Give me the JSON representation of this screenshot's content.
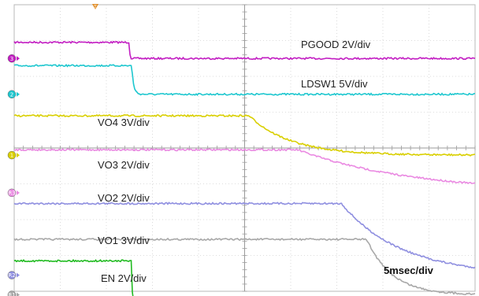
{
  "chart_data": {
    "type": "line",
    "timebase": "5msec/div",
    "trigger_marker": "T",
    "x_divisions": 10,
    "y_divisions": 8,
    "series": [
      {
        "name": "PGOOD",
        "label": "PGOOD  2V/div",
        "color": "#c21dc2",
        "channel": "3",
        "ground_div": 1.5,
        "high_div": 0.45,
        "t_fall_div": 2.5,
        "tau_div": 0.01
      },
      {
        "name": "LDSW1",
        "label": "LDSW1  5V/div",
        "color": "#1ec7cf",
        "channel": "2",
        "ground_div": 2.5,
        "high_div": 0.8,
        "t_fall_div": 2.55,
        "tau_div": 0.04
      },
      {
        "name": "VO4",
        "label": "VO4  3V/div",
        "color": "#d9cf00",
        "channel": "1",
        "ground_div": 4.2,
        "high_div": 1.1,
        "t_fall_div": 5.1,
        "tau_div": 0.9
      },
      {
        "name": "VO3",
        "label": "VO3  2V/div",
        "color": "#ea8ae2",
        "channel": "R3",
        "ground_div": 5.25,
        "high_div": 1.2,
        "t_fall_div": 6.15,
        "tau_div": 2.5
      },
      {
        "name": "VO2",
        "label": "VO2  2V/div",
        "color": "#8f8fe0",
        "channel": "R2",
        "ground_div": 7.55,
        "high_div": 2.0,
        "t_fall_div": 7.1,
        "tau_div": 1.3
      },
      {
        "name": "VO1",
        "label": "VO1  3V/div",
        "color": "#a8a8a8",
        "channel": "R1",
        "ground_div": 8.1,
        "high_div": 1.55,
        "t_fall_div": 7.65,
        "tau_div": 0.55
      },
      {
        "name": "EN",
        "label": "EN  2V/div",
        "color": "#22bb22",
        "channel": "4",
        "ground_div": 8.3,
        "high_div": 1.15,
        "t_fall_div": 2.55,
        "tau_div": 0.01
      }
    ]
  }
}
